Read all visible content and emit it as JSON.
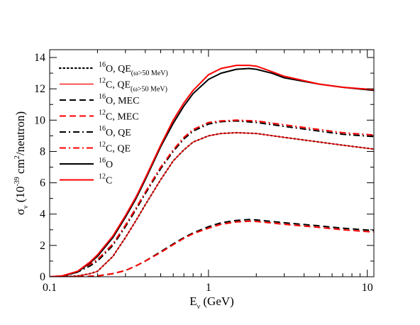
{
  "chart_data": {
    "type": "line",
    "xscale": "log",
    "xlim": [
      0.1,
      11
    ],
    "ylim": [
      0,
      14.5
    ],
    "xticks": [
      0.1,
      1,
      10
    ],
    "xtick_labels": [
      "0.1",
      "1",
      "10"
    ],
    "yticks": [
      0,
      2,
      4,
      6,
      8,
      10,
      12,
      14
    ],
    "ytick_labels": [
      "0",
      "2",
      "4",
      "6",
      "8",
      "10",
      "12",
      "14"
    ],
    "xlabel": {
      "main": "E",
      "sub": "ν",
      "unit": " (GeV)"
    },
    "ylabel": {
      "sigma": "σ",
      "sub": "ν",
      "pre": " (10",
      "exp": "-39",
      "mid": " cm",
      "exp2": "2",
      "post": "/neutron)"
    },
    "legend_position": "top-left",
    "grid": false,
    "series": [
      {
        "key": "o_qe50",
        "legend": {
          "nuc": "16",
          "label": "O, QE",
          "sub": "(ω>50 MeV)"
        },
        "color": "#000000",
        "dash": "dotted",
        "x": [
          0.12,
          0.15,
          0.18,
          0.2,
          0.25,
          0.3,
          0.35,
          0.4,
          0.5,
          0.6,
          0.7,
          0.8,
          1.0,
          1.2,
          1.5,
          2,
          3,
          5,
          7,
          11
        ],
        "y": [
          0,
          0.05,
          0.2,
          0.35,
          1.3,
          2.5,
          3.6,
          4.6,
          6.2,
          7.4,
          8.1,
          8.6,
          9.0,
          9.15,
          9.2,
          9.15,
          8.9,
          8.6,
          8.4,
          8.15
        ]
      },
      {
        "key": "c_qe50",
        "legend": {
          "nuc": "12",
          "label": "C, QE",
          "sub": "(ω>50 MeV)"
        },
        "color": "#ff0000",
        "dash": "solid-thin",
        "x": [
          0.12,
          0.15,
          0.18,
          0.2,
          0.25,
          0.3,
          0.35,
          0.4,
          0.5,
          0.6,
          0.7,
          0.8,
          1.0,
          1.2,
          1.5,
          2,
          3,
          5,
          7,
          11
        ],
        "y": [
          0,
          0.05,
          0.2,
          0.35,
          1.3,
          2.5,
          3.6,
          4.6,
          6.2,
          7.4,
          8.1,
          8.6,
          9.0,
          9.15,
          9.2,
          9.15,
          8.9,
          8.6,
          8.4,
          8.15
        ]
      },
      {
        "key": "o_mec",
        "legend": {
          "nuc": "16",
          "label": "O, MEC",
          "sub": ""
        },
        "color": "#000000",
        "dash": "dashed",
        "x": [
          0.15,
          0.2,
          0.25,
          0.3,
          0.35,
          0.4,
          0.5,
          0.6,
          0.7,
          0.8,
          1.0,
          1.2,
          1.5,
          1.8,
          2,
          3,
          5,
          7,
          11
        ],
        "y": [
          0,
          0.05,
          0.2,
          0.4,
          0.7,
          1.0,
          1.6,
          2.1,
          2.5,
          2.8,
          3.2,
          3.45,
          3.6,
          3.65,
          3.63,
          3.45,
          3.25,
          3.1,
          2.95
        ]
      },
      {
        "key": "c_mec",
        "legend": {
          "nuc": "12",
          "label": "C, MEC",
          "sub": ""
        },
        "color": "#ff0000",
        "dash": "dashed",
        "x": [
          0.15,
          0.2,
          0.25,
          0.3,
          0.35,
          0.4,
          0.5,
          0.6,
          0.7,
          0.8,
          1.0,
          1.2,
          1.5,
          1.8,
          2,
          3,
          5,
          7,
          11
        ],
        "y": [
          0,
          0.05,
          0.2,
          0.4,
          0.7,
          1.0,
          1.55,
          2.05,
          2.45,
          2.75,
          3.1,
          3.35,
          3.5,
          3.55,
          3.53,
          3.35,
          3.15,
          3.0,
          2.85
        ]
      },
      {
        "key": "o_qe",
        "legend": {
          "nuc": "16",
          "label": "O, QE",
          "sub": ""
        },
        "color": "#000000",
        "dash": "dashdot",
        "x": [
          0.12,
          0.15,
          0.18,
          0.2,
          0.25,
          0.3,
          0.35,
          0.4,
          0.5,
          0.6,
          0.7,
          0.8,
          1.0,
          1.2,
          1.5,
          2,
          3,
          5,
          7,
          11
        ],
        "y": [
          0,
          0.3,
          0.7,
          1.0,
          2.0,
          3.2,
          4.3,
          5.3,
          6.9,
          8.0,
          8.8,
          9.3,
          9.75,
          9.9,
          9.95,
          9.85,
          9.6,
          9.3,
          9.1,
          8.95
        ]
      },
      {
        "key": "c_qe",
        "legend": {
          "nuc": "12",
          "label": "C, QE",
          "sub": ""
        },
        "color": "#ff0000",
        "dash": "dashdot",
        "x": [
          0.12,
          0.15,
          0.18,
          0.2,
          0.25,
          0.3,
          0.35,
          0.4,
          0.5,
          0.6,
          0.7,
          0.8,
          1.0,
          1.2,
          1.5,
          2,
          3,
          5,
          7,
          11
        ],
        "y": [
          0,
          0.35,
          0.8,
          1.1,
          2.1,
          3.3,
          4.4,
          5.4,
          7.0,
          8.1,
          8.9,
          9.4,
          9.85,
          9.95,
          10.0,
          9.95,
          9.7,
          9.4,
          9.2,
          9.05
        ]
      },
      {
        "key": "o_tot",
        "legend": {
          "nuc": "16",
          "label": "O",
          "sub": ""
        },
        "color": "#000000",
        "dash": "solid",
        "x": [
          0.1,
          0.12,
          0.15,
          0.18,
          0.2,
          0.25,
          0.3,
          0.35,
          0.4,
          0.5,
          0.6,
          0.7,
          0.8,
          1.0,
          1.2,
          1.5,
          1.8,
          2,
          2.5,
          3,
          5,
          7,
          11
        ],
        "y": [
          0,
          0.05,
          0.3,
          0.9,
          1.3,
          2.5,
          3.8,
          5.0,
          6.2,
          8.3,
          9.8,
          10.9,
          11.7,
          12.6,
          13.0,
          13.25,
          13.3,
          13.25,
          13.0,
          12.7,
          12.3,
          12.1,
          11.9
        ]
      },
      {
        "key": "c_tot",
        "legend": {
          "nuc": "12",
          "label": "C",
          "sub": ""
        },
        "color": "#ff0000",
        "dash": "solid",
        "x": [
          0.1,
          0.12,
          0.15,
          0.18,
          0.2,
          0.25,
          0.3,
          0.35,
          0.4,
          0.5,
          0.6,
          0.7,
          0.8,
          1.0,
          1.2,
          1.5,
          1.8,
          2,
          2.5,
          3,
          5,
          7,
          11
        ],
        "y": [
          0,
          0.06,
          0.35,
          0.95,
          1.4,
          2.6,
          3.9,
          5.1,
          6.3,
          8.4,
          10.0,
          11.1,
          11.9,
          12.9,
          13.3,
          13.5,
          13.5,
          13.45,
          13.1,
          12.8,
          12.3,
          12.1,
          11.95
        ]
      }
    ]
  }
}
